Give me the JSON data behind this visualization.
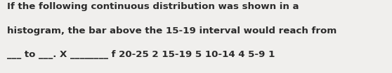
{
  "line1": "If the following continuous distribution was shown in a",
  "line2": "histogram, the bar above the 15-19 interval would reach from",
  "line3": "___ to ___. X ________ f 20-25 2 15-19 5 10-14 4 5-9 1",
  "bg_color": "#f0efed",
  "text_color": "#2b2b2b",
  "font_size": 9.6,
  "fig_width": 5.58,
  "fig_height": 1.05,
  "dpi": 100
}
